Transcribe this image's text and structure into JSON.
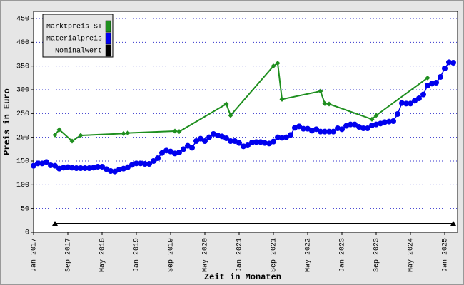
{
  "chart_data": {
    "type": "line",
    "y_label": "Preis in Euro",
    "x_label": "Zeit in Monaten",
    "xlim": [
      "2017-01",
      "2025-04"
    ],
    "ylim": [
      0,
      465
    ],
    "yticks": [
      0,
      50,
      100,
      150,
      200,
      250,
      300,
      350,
      400,
      450
    ],
    "xticks": [
      {
        "value": "2017-01",
        "label": "Jan 2017"
      },
      {
        "value": "2017-09",
        "label": "Sep 2017"
      },
      {
        "value": "2018-05",
        "label": "May 2018"
      },
      {
        "value": "2019-01",
        "label": "Jan 2019"
      },
      {
        "value": "2019-09",
        "label": "Sep 2019"
      },
      {
        "value": "2020-05",
        "label": "May 2020"
      },
      {
        "value": "2021-01",
        "label": "Jan 2021"
      },
      {
        "value": "2021-09",
        "label": "Sep 2021"
      },
      {
        "value": "2022-05",
        "label": "May 2022"
      },
      {
        "value": "2023-01",
        "label": "Jan 2023"
      },
      {
        "value": "2023-09",
        "label": "Sep 2023"
      },
      {
        "value": "2024-05",
        "label": "May 2024"
      },
      {
        "value": "2025-01",
        "label": "Jan 2025"
      }
    ],
    "grid": true,
    "legend": "top-left",
    "series": [
      {
        "name": "Marktpreis ST",
        "color": "#1f8f1f",
        "marker": "diamond",
        "x": [
          "2017-06",
          "2017-07",
          "2017-10",
          "2017-12",
          "2018-10",
          "2018-11",
          "2019-10",
          "2019-11",
          "2020-10",
          "2020-11",
          "2021-09",
          "2021-10",
          "2021-11",
          "2022-08",
          "2022-09",
          "2022-10",
          "2023-08",
          "2023-09",
          "2024-09"
        ],
        "values": [
          205,
          216,
          192,
          204,
          208,
          209,
          213,
          212,
          270,
          246,
          350,
          356,
          280,
          297,
          271,
          270,
          238,
          246,
          325
        ]
      },
      {
        "name": "Materialpreis",
        "color": "#0000ee",
        "marker": "circle",
        "x": [
          "2017-01",
          "2017-02",
          "2017-03",
          "2017-04",
          "2017-05",
          "2017-06",
          "2017-07",
          "2017-08",
          "2017-09",
          "2017-10",
          "2017-11",
          "2017-12",
          "2018-01",
          "2018-02",
          "2018-03",
          "2018-04",
          "2018-05",
          "2018-06",
          "2018-07",
          "2018-08",
          "2018-09",
          "2018-10",
          "2018-11",
          "2018-12",
          "2019-01",
          "2019-02",
          "2019-03",
          "2019-04",
          "2019-05",
          "2019-06",
          "2019-07",
          "2019-08",
          "2019-09",
          "2019-10",
          "2019-11",
          "2019-12",
          "2020-01",
          "2020-02",
          "2020-03",
          "2020-04",
          "2020-05",
          "2020-06",
          "2020-07",
          "2020-08",
          "2020-09",
          "2020-10",
          "2020-11",
          "2020-12",
          "2021-01",
          "2021-02",
          "2021-03",
          "2021-04",
          "2021-05",
          "2021-06",
          "2021-07",
          "2021-08",
          "2021-09",
          "2021-10",
          "2021-11",
          "2021-12",
          "2022-01",
          "2022-02",
          "2022-03",
          "2022-04",
          "2022-05",
          "2022-06",
          "2022-07",
          "2022-08",
          "2022-09",
          "2022-10",
          "2022-11",
          "2022-12",
          "2023-01",
          "2023-02",
          "2023-03",
          "2023-04",
          "2023-05",
          "2023-06",
          "2023-07",
          "2023-08",
          "2023-09",
          "2023-10",
          "2023-11",
          "2023-12",
          "2024-01",
          "2024-02",
          "2024-03",
          "2024-04",
          "2024-05",
          "2024-06",
          "2024-07",
          "2024-08",
          "2024-09",
          "2024-10",
          "2024-11",
          "2024-12",
          "2025-01",
          "2025-02",
          "2025-03"
        ],
        "values": [
          140,
          145,
          145,
          148,
          141,
          140,
          134,
          136,
          137,
          136,
          135,
          135,
          135,
          135,
          136,
          138,
          138,
          133,
          129,
          128,
          132,
          134,
          137,
          142,
          145,
          145,
          144,
          144,
          150,
          156,
          167,
          172,
          170,
          166,
          168,
          175,
          182,
          178,
          192,
          197,
          192,
          200,
          207,
          204,
          202,
          198,
          192,
          192,
          188,
          181,
          183,
          189,
          190,
          190,
          188,
          187,
          191,
          200,
          199,
          200,
          205,
          220,
          223,
          218,
          218,
          214,
          217,
          212,
          212,
          212,
          212,
          219,
          217,
          224,
          227,
          227,
          222,
          219,
          219,
          225,
          227,
          229,
          232,
          233,
          234,
          249,
          272,
          271,
          271,
          277,
          282,
          290,
          309,
          313,
          315,
          327,
          345,
          358,
          357
        ]
      },
      {
        "name": "Nominalwert",
        "color": "#000000",
        "marker": "triangle",
        "x": [
          "2017-06",
          "2025-03"
        ],
        "values": [
          18,
          18
        ]
      }
    ]
  }
}
